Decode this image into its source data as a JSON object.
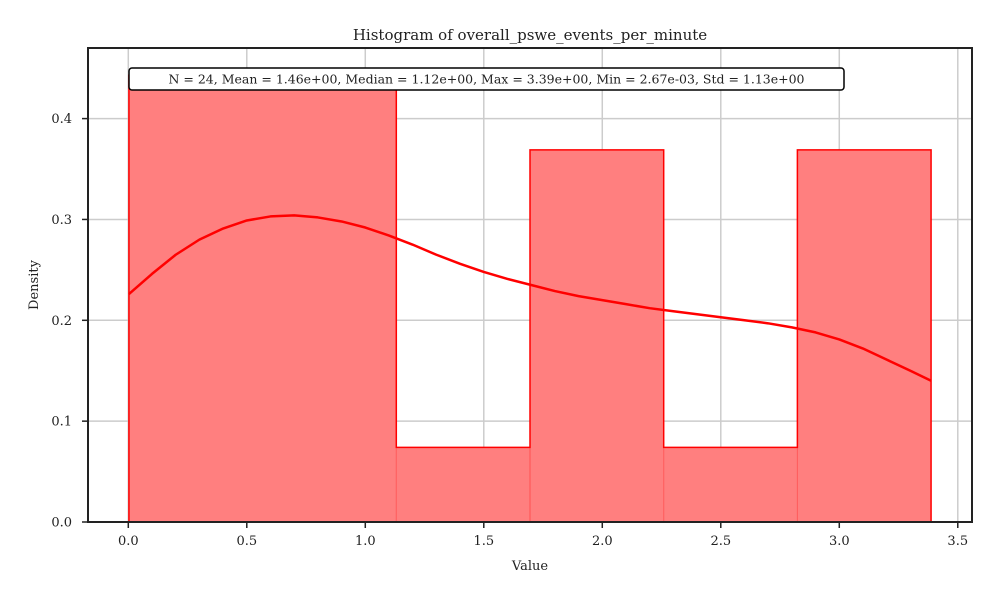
{
  "chart_data": {
    "type": "bar",
    "title": "Histogram of overall_pswe_events_per_minute",
    "xlabel": "Value",
    "ylabel": "Density",
    "stats_text": "N = 24, Mean = 1.46e+00, Median = 1.12e+00, Max = 3.39e+00, Min = 2.67e-03, Std = 1.13e+00",
    "xlim": [
      -0.17,
      3.56
    ],
    "ylim": [
      0,
      0.47
    ],
    "xticks": [
      "0.0",
      "0.5",
      "1.0",
      "1.5",
      "2.0",
      "2.5",
      "3.0",
      "3.5"
    ],
    "yticks": [
      "0.0",
      "0.1",
      "0.2",
      "0.3",
      "0.4"
    ],
    "grid": true,
    "bins": [
      {
        "x0": 0.0027,
        "x1": 1.1309,
        "density": 0.443
      },
      {
        "x0": 1.1309,
        "x1": 1.695,
        "density": 0.074
      },
      {
        "x0": 1.695,
        "x1": 2.2591,
        "density": 0.369
      },
      {
        "x0": 2.2591,
        "x1": 2.8232,
        "density": 0.074
      },
      {
        "x0": 2.8232,
        "x1": 3.3873,
        "density": 0.369
      }
    ],
    "kde": {
      "x": [
        0.0027,
        0.1,
        0.2,
        0.3,
        0.4,
        0.5,
        0.6,
        0.7,
        0.8,
        0.9,
        1.0,
        1.1,
        1.2,
        1.3,
        1.4,
        1.5,
        1.6,
        1.7,
        1.8,
        1.9,
        2.0,
        2.1,
        2.2,
        2.3,
        2.4,
        2.5,
        2.6,
        2.7,
        2.8,
        2.9,
        3.0,
        3.1,
        3.2,
        3.3,
        3.3873
      ],
      "y": [
        0.226,
        0.246,
        0.265,
        0.28,
        0.291,
        0.299,
        0.303,
        0.304,
        0.302,
        0.298,
        0.292,
        0.284,
        0.275,
        0.265,
        0.256,
        0.248,
        0.241,
        0.235,
        0.229,
        0.224,
        0.22,
        0.216,
        0.212,
        0.209,
        0.206,
        0.203,
        0.2,
        0.197,
        0.193,
        0.188,
        0.181,
        0.172,
        0.161,
        0.15,
        0.14
      ]
    },
    "colors": {
      "bar_fill": "#ff7f7f",
      "bar_edge": "#ff0000",
      "kde_line": "#ff0000",
      "grid": "#cccccc",
      "axis": "#222222"
    }
  }
}
